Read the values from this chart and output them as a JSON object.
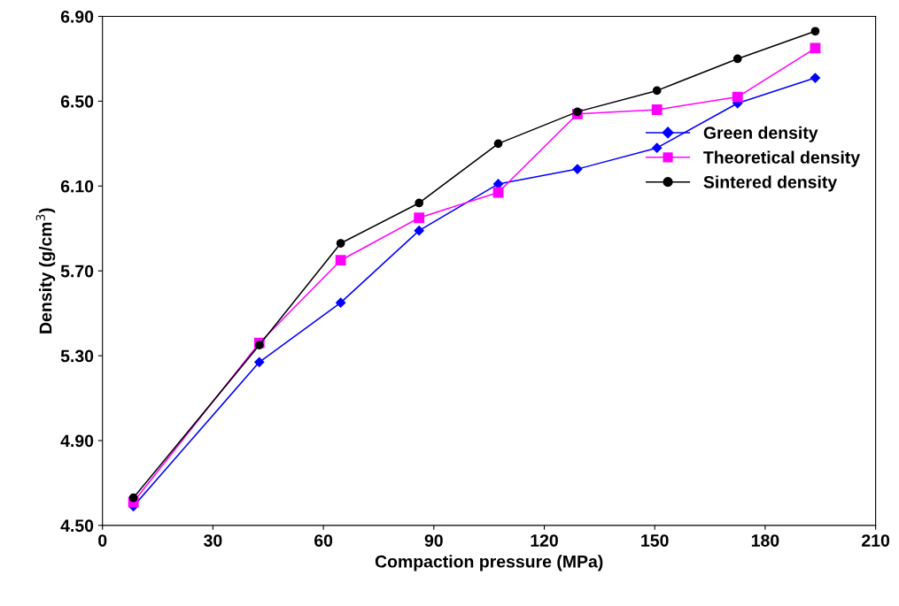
{
  "chart_data": {
    "type": "line",
    "xlabel": "Compaction pressure (MPa)",
    "ylabel": "Density (g/cm$^{3}$)",
    "x": [
      8.4,
      42.6,
      64.7,
      86,
      107.5,
      129,
      150.6,
      172.5,
      193.6
    ],
    "series": [
      {
        "name": "Green density",
        "color": "#0000ff",
        "marker": "diamond",
        "values": [
          4.59,
          5.27,
          5.55,
          5.89,
          6.11,
          6.18,
          6.28,
          6.49,
          6.61
        ]
      },
      {
        "name": "Theoretical density",
        "color": "#ff00ff",
        "marker": "square",
        "values": [
          4.61,
          5.36,
          5.75,
          5.95,
          6.07,
          6.44,
          6.46,
          6.52,
          6.75
        ]
      },
      {
        "name": "Sintered density",
        "color": "#000000",
        "marker": "circle",
        "values": [
          4.63,
          5.35,
          5.83,
          6.02,
          6.3,
          6.45,
          6.55,
          6.7,
          6.83
        ]
      }
    ],
    "xlim": [
      0,
      210
    ],
    "xticks": [
      0,
      30,
      60,
      90,
      120,
      150,
      180,
      210
    ],
    "ylim": [
      4.5,
      6.9
    ],
    "yticks": [
      {
        "value": 4.5,
        "label": "4.50"
      },
      {
        "value": 4.9,
        "label": "4.90"
      },
      {
        "value": 5.3,
        "label": "5.30"
      },
      {
        "value": 5.7,
        "label": "5.70"
      },
      {
        "value": 6.1,
        "label": "6.10"
      },
      {
        "value": 6.5,
        "label": "6.50"
      },
      {
        "value": 6.9,
        "label": "6.90"
      }
    ],
    "grid": false,
    "legend": "right",
    "line_style": "solid"
  }
}
